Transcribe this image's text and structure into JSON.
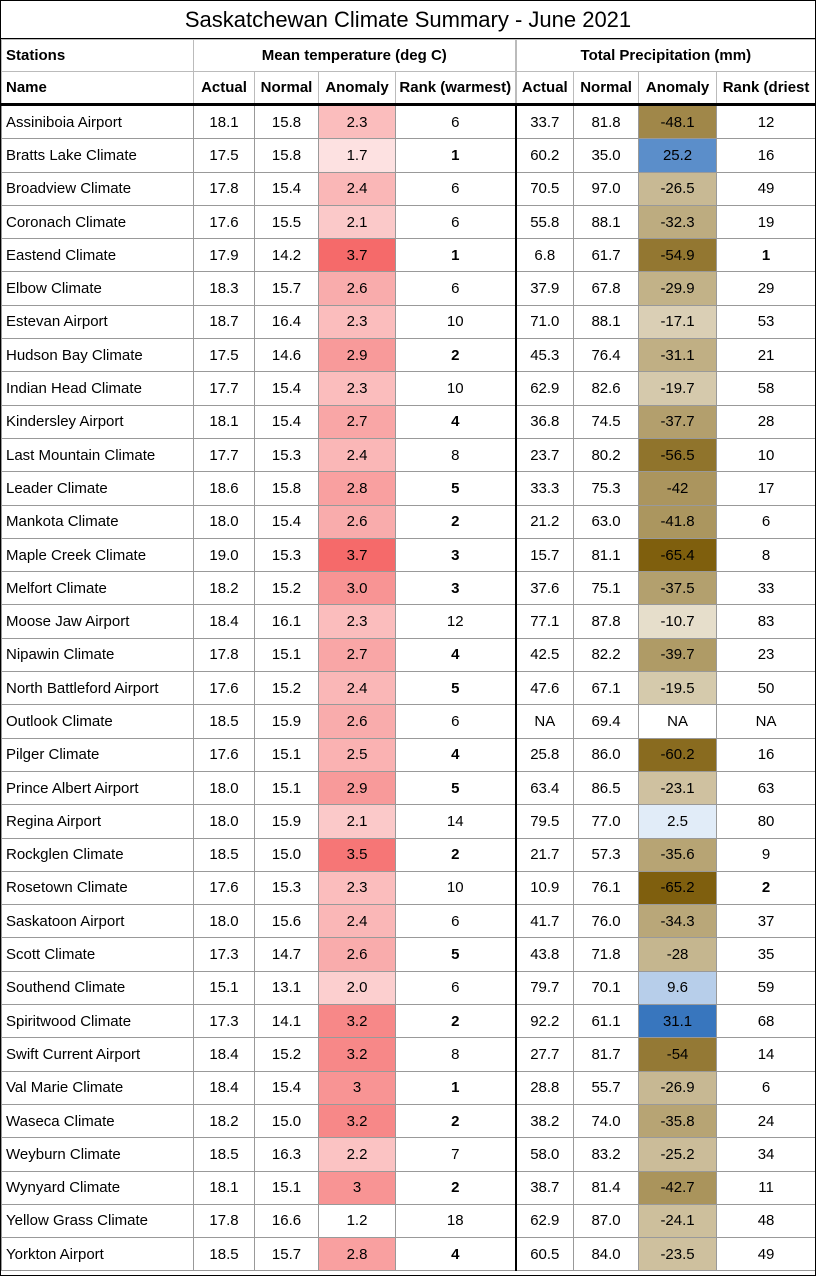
{
  "title": "Saskatchewan Climate Summary - June 2021",
  "group_headers": [
    "Stations",
    "Mean temperature (deg C)",
    "Total Precipitation (mm)"
  ],
  "columns": [
    "Name",
    "Actual",
    "Normal",
    "Anomaly",
    "Rank (warmest)",
    "Actual",
    "Normal",
    "Anomaly",
    "Rank (driest"
  ],
  "rows": [
    [
      "Assiniboia Airport",
      "18.1",
      "15.8",
      "2.3",
      "6",
      "33.7",
      "81.8",
      "-48.1",
      "12"
    ],
    [
      "Bratts Lake Climate",
      "17.5",
      "15.8",
      "1.7",
      "1",
      "60.2",
      "35.0",
      "25.2",
      "16"
    ],
    [
      "Broadview Climate",
      "17.8",
      "15.4",
      "2.4",
      "6",
      "70.5",
      "97.0",
      "-26.5",
      "49"
    ],
    [
      "Coronach Climate",
      "17.6",
      "15.5",
      "2.1",
      "6",
      "55.8",
      "88.1",
      "-32.3",
      "19"
    ],
    [
      "Eastend Climate",
      "17.9",
      "14.2",
      "3.7",
      "1",
      "6.8",
      "61.7",
      "-54.9",
      "1"
    ],
    [
      "Elbow Climate",
      "18.3",
      "15.7",
      "2.6",
      "6",
      "37.9",
      "67.8",
      "-29.9",
      "29"
    ],
    [
      "Estevan Airport",
      "18.7",
      "16.4",
      "2.3",
      "10",
      "71.0",
      "88.1",
      "-17.1",
      "53"
    ],
    [
      "Hudson Bay Climate",
      "17.5",
      "14.6",
      "2.9",
      "2",
      "45.3",
      "76.4",
      "-31.1",
      "21"
    ],
    [
      "Indian Head Climate",
      "17.7",
      "15.4",
      "2.3",
      "10",
      "62.9",
      "82.6",
      "-19.7",
      "58"
    ],
    [
      "Kindersley Airport",
      "18.1",
      "15.4",
      "2.7",
      "4",
      "36.8",
      "74.5",
      "-37.7",
      "28"
    ],
    [
      "Last Mountain Climate",
      "17.7",
      "15.3",
      "2.4",
      "8",
      "23.7",
      "80.2",
      "-56.5",
      "10"
    ],
    [
      "Leader Climate",
      "18.6",
      "15.8",
      "2.8",
      "5",
      "33.3",
      "75.3",
      "-42",
      "17"
    ],
    [
      "Mankota Climate",
      "18.0",
      "15.4",
      "2.6",
      "2",
      "21.2",
      "63.0",
      "-41.8",
      "6"
    ],
    [
      "Maple Creek Climate",
      "19.0",
      "15.3",
      "3.7",
      "3",
      "15.7",
      "81.1",
      "-65.4",
      "8"
    ],
    [
      "Melfort Climate",
      "18.2",
      "15.2",
      "3.0",
      "3",
      "37.6",
      "75.1",
      "-37.5",
      "33"
    ],
    [
      "Moose Jaw Airport",
      "18.4",
      "16.1",
      "2.3",
      "12",
      "77.1",
      "87.8",
      "-10.7",
      "83"
    ],
    [
      "Nipawin Climate",
      "17.8",
      "15.1",
      "2.7",
      "4",
      "42.5",
      "82.2",
      "-39.7",
      "23"
    ],
    [
      "North Battleford Airport",
      "17.6",
      "15.2",
      "2.4",
      "5",
      "47.6",
      "67.1",
      "-19.5",
      "50"
    ],
    [
      "Outlook Climate",
      "18.5",
      "15.9",
      "2.6",
      "6",
      "NA",
      "69.4",
      "NA",
      "NA"
    ],
    [
      "Pilger Climate",
      "17.6",
      "15.1",
      "2.5",
      "4",
      "25.8",
      "86.0",
      "-60.2",
      "16"
    ],
    [
      "Prince Albert Airport",
      "18.0",
      "15.1",
      "2.9",
      "5",
      "63.4",
      "86.5",
      "-23.1",
      "63"
    ],
    [
      "Regina Airport",
      "18.0",
      "15.9",
      "2.1",
      "14",
      "79.5",
      "77.0",
      "2.5",
      "80"
    ],
    [
      "Rockglen Climate",
      "18.5",
      "15.0",
      "3.5",
      "2",
      "21.7",
      "57.3",
      "-35.6",
      "9"
    ],
    [
      "Rosetown Climate",
      "17.6",
      "15.3",
      "2.3",
      "10",
      "10.9",
      "76.1",
      "-65.2",
      "2"
    ],
    [
      "Saskatoon Airport",
      "18.0",
      "15.6",
      "2.4",
      "6",
      "41.7",
      "76.0",
      "-34.3",
      "37"
    ],
    [
      "Scott Climate",
      "17.3",
      "14.7",
      "2.6",
      "5",
      "43.8",
      "71.8",
      "-28",
      "35"
    ],
    [
      "Southend Climate",
      "15.1",
      "13.1",
      "2.0",
      "6",
      "79.7",
      "70.1",
      "9.6",
      "59"
    ],
    [
      "Spiritwood Climate",
      "17.3",
      "14.1",
      "3.2",
      "2",
      "92.2",
      "61.1",
      "31.1",
      "68"
    ],
    [
      "Swift Current Airport",
      "18.4",
      "15.2",
      "3.2",
      "8",
      "27.7",
      "81.7",
      "-54",
      "14"
    ],
    [
      "Val Marie Climate",
      "18.4",
      "15.4",
      "3",
      "1",
      "28.8",
      "55.7",
      "-26.9",
      "6"
    ],
    [
      "Waseca Climate",
      "18.2",
      "15.0",
      "3.2",
      "2",
      "38.2",
      "74.0",
      "-35.8",
      "24"
    ],
    [
      "Weyburn Climate",
      "18.5",
      "16.3",
      "2.2",
      "7",
      "58.0",
      "83.2",
      "-25.2",
      "34"
    ],
    [
      "Wynyard Climate",
      "18.1",
      "15.1",
      "3",
      "2",
      "38.7",
      "81.4",
      "-42.7",
      "11"
    ],
    [
      "Yellow Grass Climate",
      "17.8",
      "16.6",
      "1.2",
      "18",
      "62.9",
      "87.0",
      "-24.1",
      "48"
    ],
    [
      "Yorkton Airport",
      "18.5",
      "15.7",
      "2.8",
      "4",
      "60.5",
      "84.0",
      "-23.5",
      "49"
    ]
  ]
}
